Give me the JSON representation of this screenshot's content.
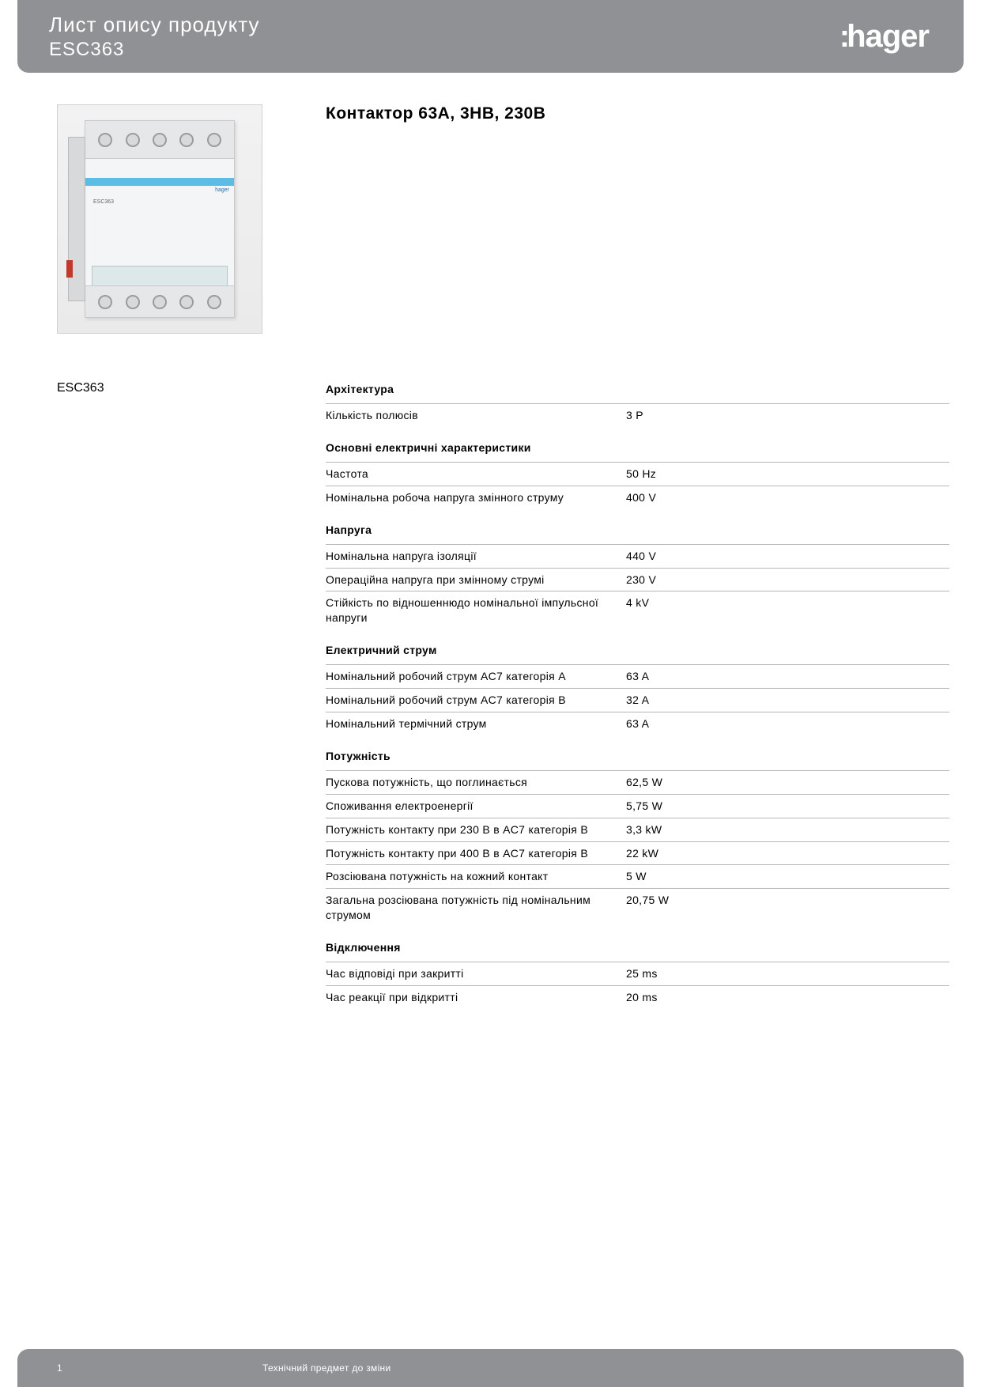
{
  "header": {
    "title": "Лист опису продукту",
    "code": "ESC363"
  },
  "brand": "hager",
  "product": {
    "code_caption": "ESC363",
    "title": "Контактор 63A, 3НВ, 230В",
    "device_brand": "hager"
  },
  "sections": [
    {
      "heading": "Архітектура",
      "rows": [
        {
          "label": "Кількість полюсів",
          "value": "3 P"
        }
      ]
    },
    {
      "heading": "Основні електричні характеристики",
      "rows": [
        {
          "label": "Частота",
          "value": "50 Hz"
        },
        {
          "label": "Номінальна робоча напруга змінного струму",
          "value": "400 V"
        }
      ]
    },
    {
      "heading": "Напруга",
      "rows": [
        {
          "label": "Номінальна напруга ізоляції",
          "value": "440 V"
        },
        {
          "label": "Операційна напруга при змінному струмі",
          "value": "230 V"
        },
        {
          "label": "Стійкість по відношеннюдо номінальної імпульсної напруги",
          "value": "4 kV"
        }
      ]
    },
    {
      "heading": "Електричний струм",
      "rows": [
        {
          "label": "Номінальний робочий струм AC7 категорія A",
          "value": "63 A"
        },
        {
          "label": "Номінальний робочий струм AC7 категорія B",
          "value": "32 A"
        },
        {
          "label": "Номінальний термічний струм",
          "value": "63 A"
        }
      ]
    },
    {
      "heading": "Потужність",
      "rows": [
        {
          "label": "Пускова потужність, що поглинається",
          "value": "62,5 W"
        },
        {
          "label": "Споживання електроенергії",
          "value": "5,75 W"
        },
        {
          "label": "Потужність контакту при 230 В в AC7 категорія B",
          "value": "3,3 kW"
        },
        {
          "label": "Потужність контакту при 400 В в AC7 категорія B",
          "value": "22 kW"
        },
        {
          "label": "Розсіювана потужність на кожний контакт",
          "value": "5 W"
        },
        {
          "label": "Загальна розсіювана потужність під номінальним струмом",
          "value": "20,75 W"
        }
      ]
    },
    {
      "heading": "Відключення",
      "rows": [
        {
          "label": "Час відповіді при закритті",
          "value": "25 ms"
        },
        {
          "label": "Час реакції при відкритті",
          "value": "20 ms"
        }
      ]
    }
  ],
  "footer": {
    "page": "1",
    "note": "Технічний предмет до зміни"
  },
  "colors": {
    "header_bg": "#8f9194",
    "text": "#000000",
    "white": "#ffffff",
    "border": "#b8b8b8",
    "stripe": "#5bbce4"
  },
  "typography": {
    "header_title_size": 26,
    "product_title_size": 21,
    "section_heading_size": 14,
    "row_size": 14,
    "footer_size": 12
  }
}
